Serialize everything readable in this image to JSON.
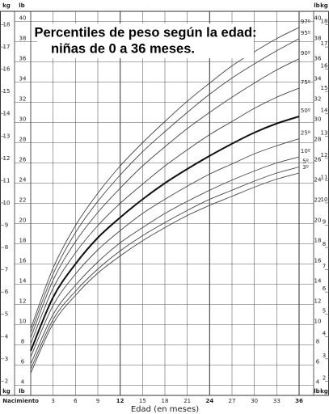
{
  "chart_data": {
    "type": "line",
    "title": [
      "Percentiles de peso según la edad:",
      "niñas de 0 a 36 meses."
    ],
    "xlabel": "Edad (en meses)",
    "ylabel": "lb",
    "y2label": "kg",
    "x": [
      0,
      3,
      6,
      9,
      12,
      15,
      18,
      21,
      24,
      27,
      30,
      33,
      36
    ],
    "xlim": [
      0,
      36
    ],
    "xticks": [
      {
        "value": 0,
        "label": "Nacimiento"
      },
      3,
      6,
      9,
      12,
      15,
      18,
      21,
      24,
      27,
      30,
      33,
      36
    ],
    "ylim": [
      3,
      41
    ],
    "yticks": [
      4,
      6,
      8,
      10,
      12,
      14,
      16,
      18,
      20,
      22,
      24,
      26,
      28,
      30,
      32,
      34,
      36,
      38,
      40
    ],
    "y2lim": [
      1.36,
      18.6
    ],
    "y2ticks": [
      2,
      3,
      4,
      5,
      6,
      7,
      8,
      9,
      10,
      11,
      12,
      13,
      14,
      15,
      16,
      17,
      18
    ],
    "grid": true,
    "series": [
      {
        "name": "97º",
        "color": "#444444",
        "values": [
          9.6,
          15.6,
          19.8,
          23.0,
          25.7,
          28.0,
          30.1,
          32.1,
          33.9,
          35.6,
          37.0,
          38.3,
          39.4
        ]
      },
      {
        "name": "95º",
        "color": "#444444",
        "values": [
          9.2,
          15.0,
          19.1,
          22.2,
          24.8,
          27.1,
          29.1,
          31.0,
          32.8,
          34.4,
          35.8,
          37.1,
          38.3
        ]
      },
      {
        "name": "90º",
        "color": "#444444",
        "values": [
          8.7,
          14.4,
          18.2,
          21.1,
          23.5,
          25.7,
          27.6,
          29.4,
          31.0,
          32.5,
          33.9,
          35.2,
          36.3
        ]
      },
      {
        "name": "75º",
        "color": "#444444",
        "values": [
          8.1,
          13.6,
          17.1,
          19.8,
          22.0,
          23.9,
          25.7,
          27.3,
          28.8,
          30.1,
          31.4,
          32.5,
          33.4
        ]
      },
      {
        "name": "50º",
        "color": "#111111",
        "values": [
          7.4,
          12.7,
          16.0,
          18.6,
          20.6,
          22.4,
          24.0,
          25.4,
          26.7,
          27.9,
          29.0,
          29.9,
          30.6
        ]
      },
      {
        "name": "25º",
        "color": "#444444",
        "values": [
          6.8,
          11.9,
          15.0,
          17.4,
          19.3,
          21.0,
          22.4,
          23.7,
          24.9,
          25.9,
          26.9,
          27.7,
          28.4
        ]
      },
      {
        "name": "10º",
        "color": "#444444",
        "values": [
          6.1,
          11.0,
          13.9,
          16.2,
          18.1,
          19.6,
          21.0,
          22.2,
          23.3,
          24.3,
          25.2,
          26.0,
          26.6
        ]
      },
      {
        "name": "5º",
        "color": "#444444",
        "values": [
          5.6,
          10.5,
          13.3,
          15.5,
          17.3,
          18.8,
          20.1,
          21.3,
          22.4,
          23.3,
          24.2,
          25.0,
          25.6
        ]
      },
      {
        "name": "3º",
        "color": "#444444",
        "values": [
          5.2,
          10.1,
          12.9,
          15.1,
          16.8,
          18.3,
          19.6,
          20.8,
          21.8,
          22.7,
          23.6,
          24.4,
          25.0
        ]
      }
    ]
  }
}
